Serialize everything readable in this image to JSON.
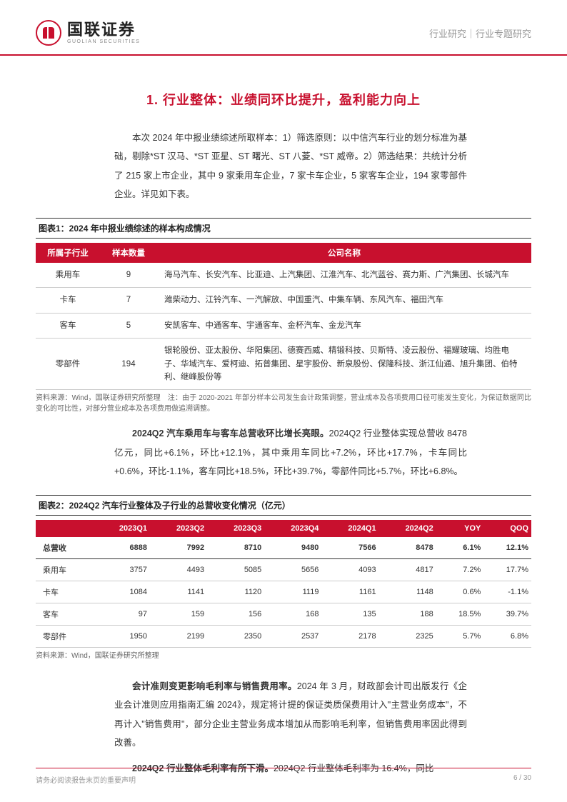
{
  "header": {
    "logo_cn": "国联证券",
    "logo_en": "GUOLIAN SECURITIES",
    "right": "行业研究｜行业专题研究"
  },
  "section_title": "1. 行业整体：业绩同环比提升，盈利能力向上",
  "intro": "本次 2024 年中报业绩综述所取样本：1）筛选原则：以中信汽车行业的划分标准为基础，剔除*ST 汉马、*ST 亚星、ST 曙光、ST 八菱、*ST 威帝。2）筛选结果：共统计分析了 215 家上市企业，其中 9 家乘用车企业，7 家卡车企业，5 家客车企业，194 家零部件企业。详见如下表。",
  "chart1": {
    "title": "图表1：2024 年中报业绩综述的样本构成情况",
    "headers": [
      "所属子行业",
      "样本数量",
      "公司名称"
    ],
    "rows": [
      {
        "industry": "乘用车",
        "count": "9",
        "companies": "海马汽车、长安汽车、比亚迪、上汽集团、江淮汽车、北汽蓝谷、赛力斯、广汽集团、长城汽车"
      },
      {
        "industry": "卡车",
        "count": "7",
        "companies": "潍柴动力、江铃汽车、一汽解放、中国重汽、中集车辆、东风汽车、福田汽车"
      },
      {
        "industry": "客车",
        "count": "5",
        "companies": "安凯客车、中通客车、宇通客车、金杯汽车、金龙汽车"
      },
      {
        "industry": "零部件",
        "count": "194",
        "companies": "银轮股份、亚太股份、华阳集团、德赛西威、精锻科技、贝斯特、凌云股份、福耀玻璃、均胜电子、华域汽车、爱柯迪、拓普集团、星宇股份、新泉股份、保隆科技、浙江仙通、旭升集团、伯特利、继峰股份等"
      }
    ],
    "source": "资料来源：Wind，国联证券研究所整理　注：由于 2020-2021 年部分样本公司发生会计政策调整，营业成本及各项费用口径可能发生变化，为保证数据同比变化的可比性，对部分营业成本及各项费用做追溯调整。"
  },
  "para2_bold": "2024Q2 汽车乘用车与客车总营收环比增长亮眼。",
  "para2_rest": "2024Q2 行业整体实现总营收 8478 亿元，同比+6.1%，环比+12.1%，其中乘用车同比+7.2%，环比+17.7%，卡车同比+0.6%，环比-1.1%，客车同比+18.5%，环比+39.7%，零部件同比+5.7%，环比+6.8%。",
  "chart2": {
    "title": "图表2：2024Q2 汽车行业整体及子行业的总营收变化情况（亿元）",
    "headers": [
      "",
      "2023Q1",
      "2023Q2",
      "2023Q3",
      "2023Q4",
      "2024Q1",
      "2024Q2",
      "YOY",
      "QOQ"
    ],
    "rows": [
      {
        "label": "总营收",
        "v": [
          "6888",
          "7992",
          "8710",
          "9480",
          "7566",
          "8478",
          "6.1%",
          "12.1%"
        ],
        "bold": true
      },
      {
        "label": "乘用车",
        "v": [
          "3757",
          "4493",
          "5085",
          "5656",
          "4093",
          "4817",
          "7.2%",
          "17.7%"
        ]
      },
      {
        "label": "卡车",
        "v": [
          "1084",
          "1141",
          "1120",
          "1119",
          "1161",
          "1148",
          "0.6%",
          "-1.1%"
        ]
      },
      {
        "label": "客车",
        "v": [
          "97",
          "159",
          "156",
          "168",
          "135",
          "188",
          "18.5%",
          "39.7%"
        ]
      },
      {
        "label": "零部件",
        "v": [
          "1950",
          "2199",
          "2350",
          "2537",
          "2178",
          "2325",
          "5.7%",
          "6.8%"
        ]
      }
    ],
    "source": "资料来源：Wind，国联证券研究所整理"
  },
  "para3_bold": "会计准则变更影响毛利率与销售费用率。",
  "para3_rest": "2024 年 3 月，财政部会计司出版发行《企业会计准则应用指南汇编 2024》，规定将计提的保证类质保费用计入\"主营业务成本\"，不再计入\"销售费用\"，部分企业主营业务成本增加从而影响毛利率，但销售费用率因此得到改善。",
  "para4_bold": "2024Q2 行业整体毛利率有所下滑。",
  "para4_rest": "2024Q2 行业整体毛利率为 16.4%，同比",
  "footer": {
    "left": "请务必阅读报告末页的重要声明",
    "right": "6 / 30"
  },
  "colors": {
    "brand_red": "#c8102e",
    "text_gray": "#999999",
    "border_gray": "#cccccc"
  }
}
